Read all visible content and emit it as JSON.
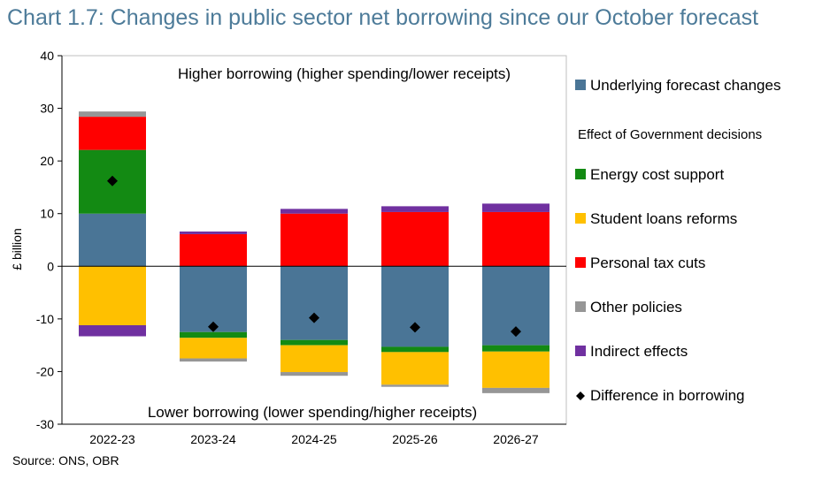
{
  "title": "Chart 1.7: Changes in public sector net borrowing since our October forecast",
  "source": "Source: ONS, OBR",
  "chart_data": {
    "type": "bar",
    "stacked": true,
    "categories": [
      "2022-23",
      "2023-24",
      "2024-25",
      "2025-26",
      "2026-27"
    ],
    "ylabel": "£ billion",
    "ylim": [
      -30,
      40
    ],
    "yticks": [
      -30,
      -20,
      -10,
      0,
      10,
      20,
      30,
      40
    ],
    "annotations": {
      "top": "Higher borrowing (higher spending/lower receipts)",
      "bottom": "Lower borrowing (lower spending/higher receipts)"
    },
    "legend_heading": "Effect of Government decisions",
    "legend_position": "right",
    "series": [
      {
        "name": "Underlying forecast changes",
        "color": "#4a7596",
        "values": [
          10,
          -12.5,
          -14,
          -15.3,
          -15
        ]
      },
      {
        "name": "Energy cost support",
        "color": "#138a13",
        "values": [
          12.1,
          -1.1,
          -1,
          -1,
          -1.2
        ]
      },
      {
        "name": "Student loans reforms",
        "color": "#ffc000",
        "values": [
          -11.2,
          -3.9,
          -5.1,
          -6.2,
          -6.9
        ]
      },
      {
        "name": "Personal tax cuts",
        "color": "#ff0000",
        "values": [
          6.3,
          6.1,
          10,
          10.3,
          10.3
        ]
      },
      {
        "name": "Other policies",
        "color": "#969696",
        "values": [
          1,
          -0.6,
          -0.7,
          -0.4,
          -1
        ]
      },
      {
        "name": "Indirect effects",
        "color": "#7030a0",
        "values": [
          -2.1,
          0.5,
          0.9,
          1.1,
          1.6
        ]
      }
    ],
    "difference": {
      "name": "Difference in borrowing",
      "values": [
        16.2,
        -11.5,
        -9.8,
        -11.6,
        -12.4
      ]
    }
  }
}
